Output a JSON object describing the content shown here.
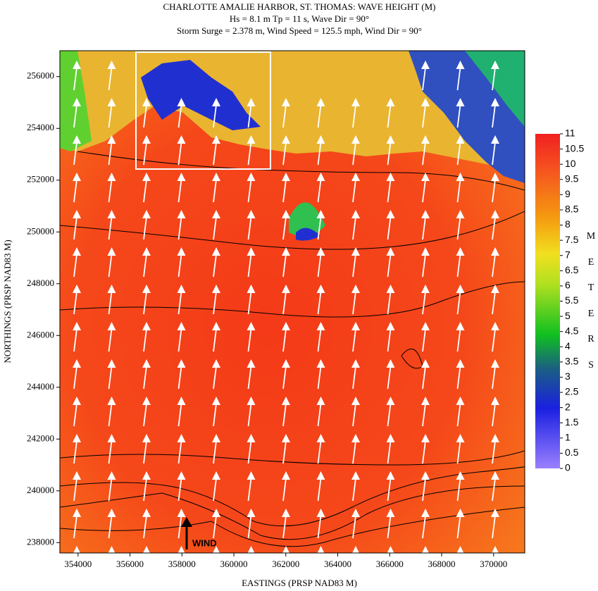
{
  "chart_data": {
    "type": "heatmap",
    "title": "CHARLOTTE AMALIE HARBOR, ST. THOMAS: WAVE HEIGHT (M)",
    "subtitle": [
      "Hs = 8.1 m Tp = 11 s, Wave Dir = 90°",
      "Storm Surge = 2.378 m, Wind Speed = 125.5 mph, Wind Dir = 90°"
    ],
    "xlabel": "EASTINGS (PRSP NAD83 M)",
    "ylabel": "NORTHINGS (PRSP NAD83 M)",
    "xlim": [
      353300,
      371200
    ],
    "xticks": [
      354000,
      356000,
      358000,
      360000,
      362000,
      364000,
      366000,
      368000,
      370000
    ],
    "ylim": [
      237600,
      257000
    ],
    "yticks": [
      238000,
      240000,
      242000,
      244000,
      246000,
      248000,
      250000,
      252000,
      254000,
      256000
    ],
    "colorbar": {
      "label": "METERS",
      "lim": [
        0,
        11
      ],
      "ticks": [
        0,
        0.5,
        1,
        1.5,
        2,
        2.5,
        3,
        3.5,
        4,
        4.5,
        5,
        5.5,
        6,
        6.5,
        7,
        7.5,
        8,
        8.5,
        9,
        9.5,
        10,
        10.5,
        11
      ]
    },
    "annotation": "WIND"
  }
}
